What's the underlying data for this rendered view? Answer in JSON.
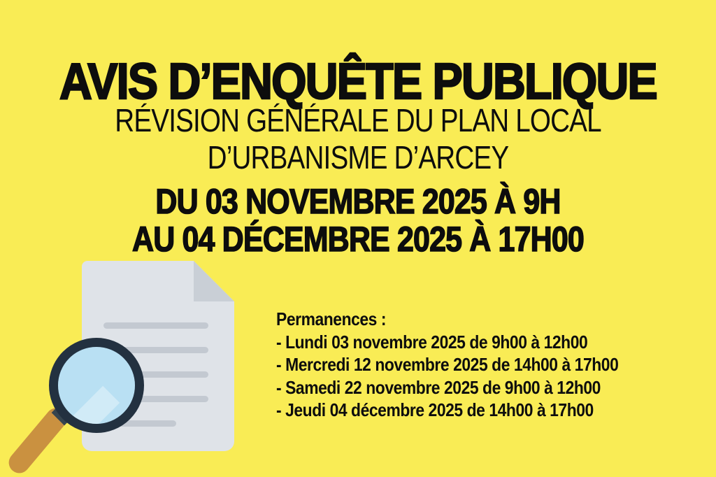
{
  "notice": {
    "title": "AVIS D’ENQUÊTE PUBLIQUE",
    "subtitle_line1": "RÉVISION GÉNÉRALE DU PLAN LOCAL",
    "subtitle_line2": "D’URBANISME D’ARCEY",
    "period_line1": "DU 03 NOVEMBRE 2025 À 9H",
    "period_line2": "AU 04 DÉCEMBRE 2025 À 17H00",
    "permanences": {
      "heading": "Permanences :",
      "items": [
        "- Lundi 03 novembre 2025 de 9h00 à 12h00",
        "- Mercredi 12 novembre 2025 de 14h00 à 17h00",
        "- Samedi 22 novembre 2025 de 9h00 à 12h00",
        "- Jeudi 04 décembre 2025 de 14h00 à 17h00"
      ]
    },
    "illustration": {
      "icons": [
        "document-icon",
        "magnifier-icon"
      ]
    }
  },
  "colors": {
    "bg": "#f9ec55",
    "ink": "#0d0d0d",
    "paper": "#dfe3e8",
    "paper-fold": "#c9cfd6",
    "paper-line": "#c3c9d1",
    "lens": "#9bd3ee",
    "rim": "#233140",
    "handle": "#ca9140",
    "connector": "#36454f"
  }
}
